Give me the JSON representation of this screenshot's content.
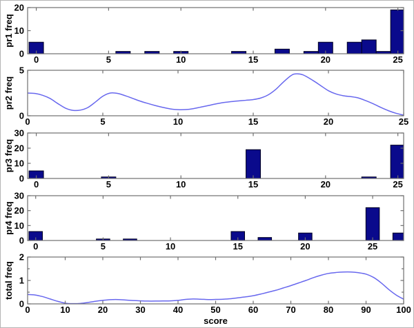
{
  "figure": {
    "colors": {
      "bar_fill": "#0a0a8c",
      "bar_edge": "#000020",
      "line": "#6767ee",
      "axis": "#6f6f6f",
      "text": "#000000",
      "background": "#ffffff"
    }
  },
  "chart_data": [
    {
      "type": "bar",
      "ylabel": "pr1 freq",
      "xlim": [
        -0.6,
        25.4
      ],
      "ylim": [
        0,
        20
      ],
      "xticks": [
        0,
        5,
        10,
        15,
        20,
        25
      ],
      "yticks": [
        0,
        10,
        20
      ],
      "minor_yticks": [],
      "grid": false,
      "bar_width": 1,
      "bars": [
        [
          0,
          5
        ],
        [
          6,
          1
        ],
        [
          8,
          1
        ],
        [
          10,
          1
        ],
        [
          14,
          1
        ],
        [
          17,
          2
        ],
        [
          19,
          1
        ],
        [
          20,
          5
        ],
        [
          22,
          5
        ],
        [
          23,
          6
        ],
        [
          24,
          1
        ],
        [
          25,
          19
        ]
      ]
    },
    {
      "type": "line",
      "ylabel": "pr2 freq",
      "xlim": [
        0,
        25
      ],
      "ylim": [
        0,
        5
      ],
      "xticks": [
        0,
        5,
        10,
        15,
        20,
        25
      ],
      "yticks": [
        0,
        5
      ],
      "minor_yticks": [],
      "grid": false,
      "points": [
        [
          0,
          2.5
        ],
        [
          0.5,
          2.45
        ],
        [
          1,
          2.25
        ],
        [
          1.5,
          1.9
        ],
        [
          2,
          1.35
        ],
        [
          2.5,
          0.85
        ],
        [
          3,
          0.6
        ],
        [
          3.5,
          0.62
        ],
        [
          4,
          0.9
        ],
        [
          4.5,
          1.5
        ],
        [
          5,
          2.15
        ],
        [
          5.5,
          2.5
        ],
        [
          6,
          2.45
        ],
        [
          6.5,
          2.2
        ],
        [
          7,
          1.9
        ],
        [
          7.5,
          1.6
        ],
        [
          8,
          1.35
        ],
        [
          8.5,
          1.12
        ],
        [
          9,
          0.92
        ],
        [
          9.5,
          0.75
        ],
        [
          10,
          0.67
        ],
        [
          10.5,
          0.68
        ],
        [
          11,
          0.78
        ],
        [
          11.5,
          0.95
        ],
        [
          12,
          1.12
        ],
        [
          12.5,
          1.3
        ],
        [
          13,
          1.45
        ],
        [
          13.5,
          1.55
        ],
        [
          14,
          1.63
        ],
        [
          14.5,
          1.7
        ],
        [
          15,
          1.78
        ],
        [
          15.5,
          1.95
        ],
        [
          16,
          2.3
        ],
        [
          16.5,
          2.9
        ],
        [
          17,
          3.7
        ],
        [
          17.5,
          4.4
        ],
        [
          17.8,
          4.6
        ],
        [
          18.3,
          4.5
        ],
        [
          19,
          3.85
        ],
        [
          19.5,
          3.3
        ],
        [
          20,
          2.75
        ],
        [
          20.5,
          2.4
        ],
        [
          21,
          2.2
        ],
        [
          21.5,
          2.1
        ],
        [
          22,
          1.95
        ],
        [
          22.5,
          1.65
        ],
        [
          23,
          1.3
        ],
        [
          23.5,
          0.9
        ],
        [
          24,
          0.55
        ],
        [
          24.5,
          0.27
        ],
        [
          25,
          0.07
        ]
      ]
    },
    {
      "type": "bar",
      "ylabel": "pr3 freq",
      "xlim": [
        -0.6,
        25.4
      ],
      "ylim": [
        0,
        30
      ],
      "xticks": [
        0,
        5,
        10,
        15,
        20,
        25
      ],
      "yticks": [
        0,
        10,
        20,
        30
      ],
      "minor_yticks": [],
      "grid": false,
      "bar_width": 1,
      "bars": [
        [
          0,
          5
        ],
        [
          5,
          1
        ],
        [
          15,
          19
        ],
        [
          23,
          1
        ],
        [
          25,
          22
        ]
      ]
    },
    {
      "type": "bar",
      "ylabel": "pr4 freq",
      "xlim": [
        -0.6,
        27.3
      ],
      "ylim": [
        0,
        30
      ],
      "xticks": [
        0,
        5,
        10,
        15,
        20,
        25
      ],
      "yticks": [
        0,
        10,
        20,
        30
      ],
      "minor_yticks": [],
      "grid": false,
      "bar_width": 1,
      "bars": [
        [
          0,
          6
        ],
        [
          5,
          1
        ],
        [
          7,
          1
        ],
        [
          15,
          6
        ],
        [
          17,
          2
        ],
        [
          20,
          5
        ],
        [
          25,
          22
        ],
        [
          27,
          5
        ]
      ]
    },
    {
      "type": "line",
      "ylabel": "total freq",
      "xlabel": "score",
      "xlim": [
        0,
        100
      ],
      "ylim": [
        0,
        2
      ],
      "xticks": [
        0,
        10,
        20,
        30,
        40,
        50,
        60,
        70,
        80,
        90,
        100
      ],
      "yticks": [
        0,
        1,
        2
      ],
      "minor_yticks": [
        0.5,
        1.5
      ],
      "grid": false,
      "points": [
        [
          0,
          0.4
        ],
        [
          2,
          0.38
        ],
        [
          4,
          0.31
        ],
        [
          6,
          0.21
        ],
        [
          8,
          0.11
        ],
        [
          10,
          0.03
        ],
        [
          12,
          0.01
        ],
        [
          14,
          0.02
        ],
        [
          16,
          0.06
        ],
        [
          18,
          0.11
        ],
        [
          20,
          0.15
        ],
        [
          22,
          0.18
        ],
        [
          24,
          0.185
        ],
        [
          26,
          0.165
        ],
        [
          28,
          0.145
        ],
        [
          30,
          0.13
        ],
        [
          32,
          0.12
        ],
        [
          34,
          0.12
        ],
        [
          36,
          0.125
        ],
        [
          38,
          0.13
        ],
        [
          40,
          0.15
        ],
        [
          42,
          0.19
        ],
        [
          44,
          0.21
        ],
        [
          46,
          0.2
        ],
        [
          48,
          0.185
        ],
        [
          50,
          0.19
        ],
        [
          52,
          0.2
        ],
        [
          54,
          0.22
        ],
        [
          56,
          0.26
        ],
        [
          58,
          0.3
        ],
        [
          60,
          0.35
        ],
        [
          62,
          0.42
        ],
        [
          64,
          0.5
        ],
        [
          66,
          0.58
        ],
        [
          68,
          0.68
        ],
        [
          70,
          0.78
        ],
        [
          72,
          0.89
        ],
        [
          74,
          1.0
        ],
        [
          76,
          1.12
        ],
        [
          78,
          1.22
        ],
        [
          80,
          1.3
        ],
        [
          82,
          1.34
        ],
        [
          84,
          1.36
        ],
        [
          86,
          1.36
        ],
        [
          88,
          1.33
        ],
        [
          90,
          1.27
        ],
        [
          92,
          1.13
        ],
        [
          94,
          0.9
        ],
        [
          96,
          0.62
        ],
        [
          98,
          0.38
        ],
        [
          100,
          0.2
        ]
      ]
    }
  ]
}
